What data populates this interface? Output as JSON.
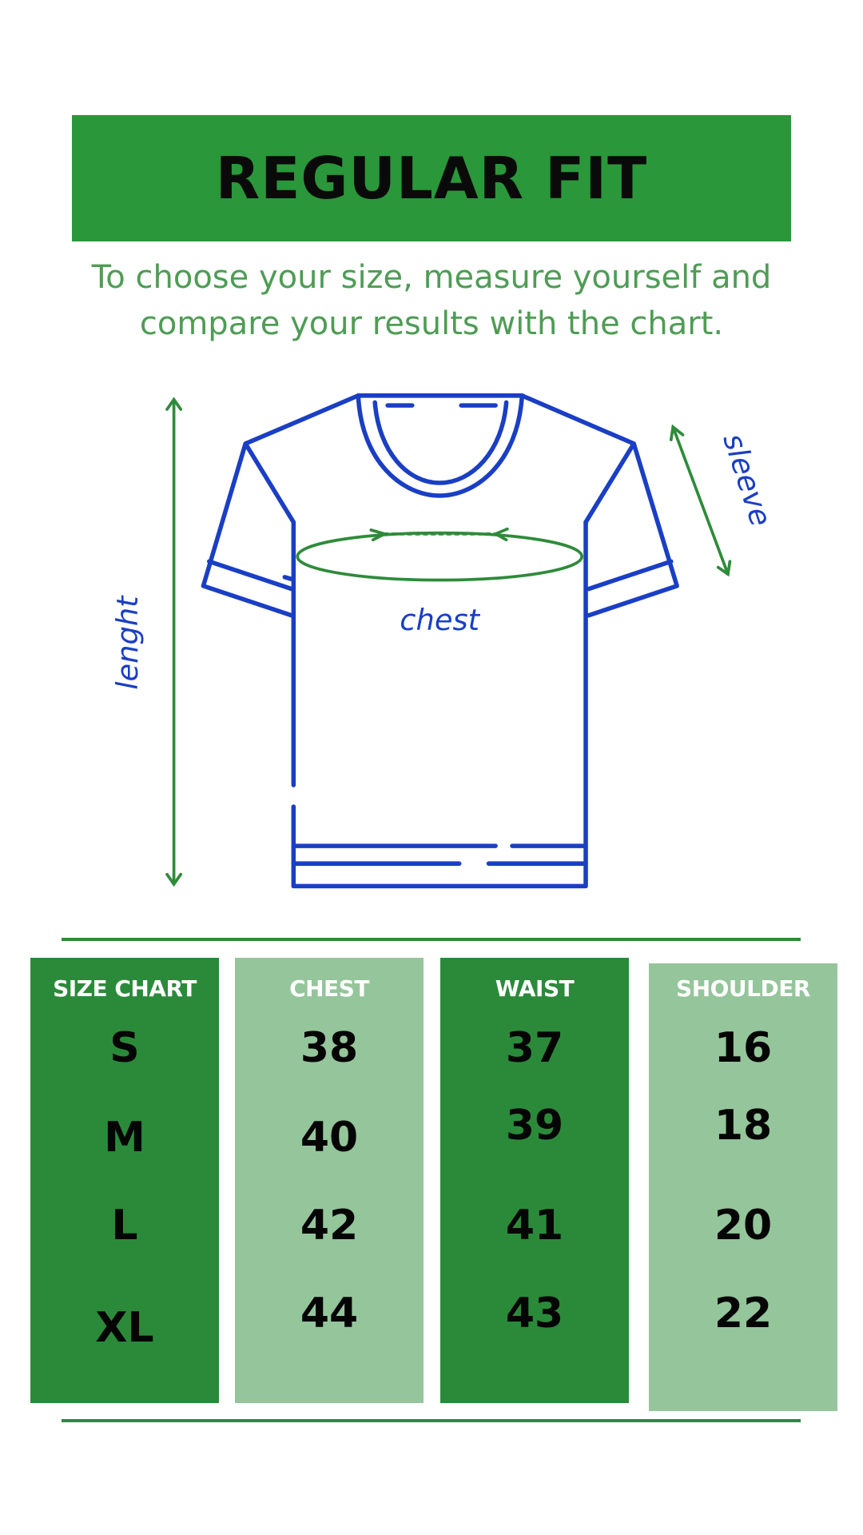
{
  "header": {
    "title": "REGULAR FIT"
  },
  "subtitle": {
    "line1": "To choose your size, measure yourself and",
    "line2": "compare your results with the chart."
  },
  "diagram": {
    "labels": {
      "length": "lenght",
      "sleeve": "sleeve",
      "chest": "chest"
    },
    "colors": {
      "outline": "#1a3fc4",
      "measure": "#2e8b3a"
    }
  },
  "colors": {
    "banner": "#2a973a",
    "dark_column": "#2b8a3a",
    "light_column": "#95c59b",
    "subtitle": "#4f9c55"
  },
  "size_chart": {
    "columns": [
      {
        "header": "SIZE CHART",
        "values": [
          "S",
          "M",
          "L",
          "XL"
        ]
      },
      {
        "header": "CHEST",
        "values": [
          "38",
          "40",
          "42",
          "44"
        ]
      },
      {
        "header": "WAIST",
        "values": [
          "37",
          "39",
          "41",
          "43"
        ]
      },
      {
        "header": "SHOULDER",
        "values": [
          "16",
          "18",
          "20",
          "22"
        ]
      }
    ]
  }
}
